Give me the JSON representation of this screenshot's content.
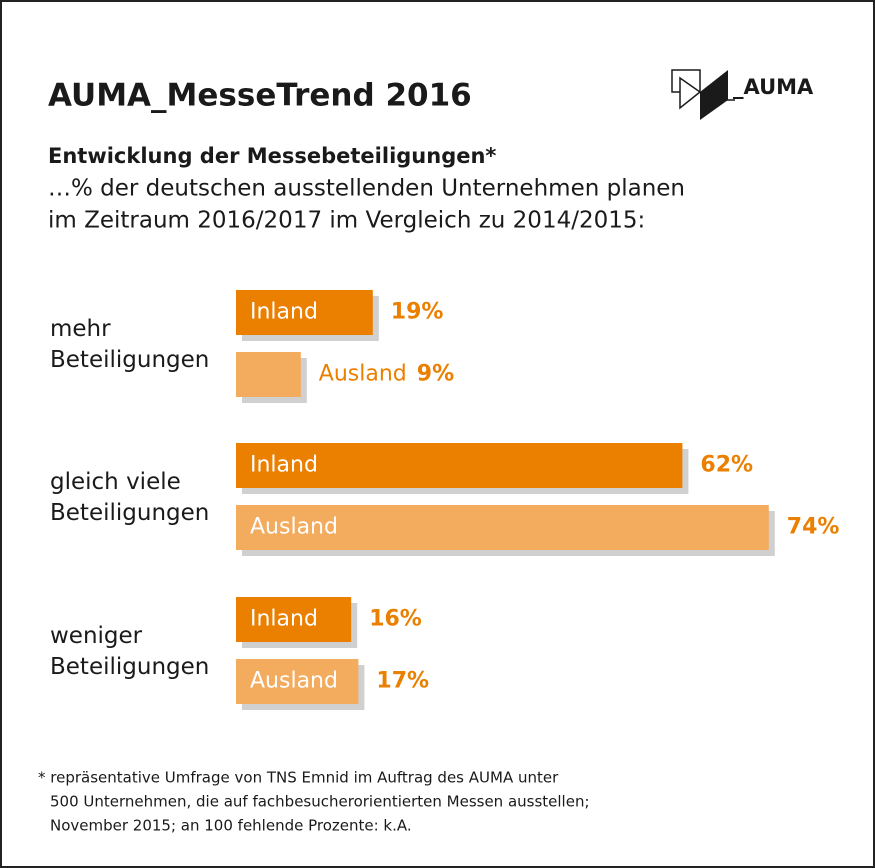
{
  "chart_data": {
    "type": "bar",
    "title": "AUMA_MesseTrend 2016",
    "logo": "_AUMA",
    "subtitle": "Entwicklung der Messebeteiligungen*",
    "description": [
      "…% der deutschen ausstellenden Unternehmen planen",
      "im Zeitraum 2016/2017 im Vergleich zu 2014/2015:"
    ],
    "categories": [
      "mehr Beteiligungen",
      "gleich viele Beteiligungen",
      "weniger Beteiligungen"
    ],
    "series": [
      {
        "name": "Inland",
        "color": "#eb7f00",
        "values": [
          19,
          62,
          16
        ],
        "value_labels": [
          "19%",
          "62%",
          "16%"
        ]
      },
      {
        "name": "Ausland",
        "color": "#f3ab5e",
        "values": [
          9,
          74,
          17
        ],
        "value_labels": [
          "9%",
          "74%",
          "17%"
        ]
      }
    ],
    "footnote": [
      "* repräsentative Umfrage von TNS Emnid im Auftrag des AUMA unter",
      "500 Unternehmen, die auf fachbesucherorientierten Messen ausstellen;",
      "November 2015; an 100 fehlende Prozente: k.A."
    ]
  }
}
